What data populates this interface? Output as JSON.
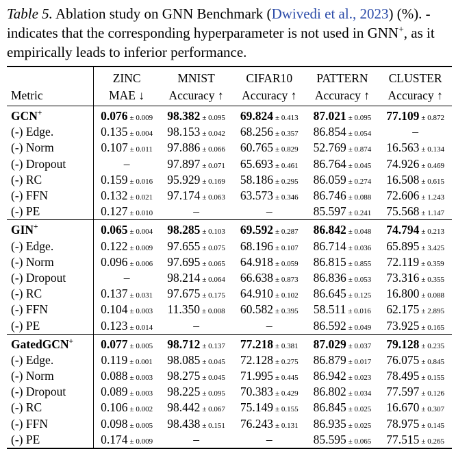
{
  "caption": {
    "label": "Table 5.",
    "text_before": "Ablation study on GNN Benchmark (",
    "link": "Dwivedi et al., 2023",
    "text_middle": ") (%). - indicates that the corresponding hyperparameter is not used in GNN",
    "sup": "+",
    "text_end": ", as it empirically leads to inferior performance."
  },
  "table": {
    "header": [
      [
        "",
        "Metric"
      ],
      [
        "ZINC",
        "MAE ↓"
      ],
      [
        "MNIST",
        "Accuracy ↑"
      ],
      [
        "CIFAR10",
        "Accuracy ↑"
      ],
      [
        "PATTERN",
        "Accuracy ↑"
      ],
      [
        "CLUSTER",
        "Accuracy ↑"
      ]
    ],
    "groups": [
      {
        "rows": [
          {
            "name": "GCN",
            "sup": "+",
            "cells": [
              [
                "0.076",
                "± 0.009"
              ],
              [
                "98.382",
                "± 0.095"
              ],
              [
                "69.824",
                "± 0.413"
              ],
              [
                "87.021",
                "± 0.095"
              ],
              [
                "77.109",
                "± 0.872"
              ]
            ]
          },
          {
            "name": "(-) Edge.",
            "cells": [
              [
                "0.135",
                "± 0.004"
              ],
              [
                "98.153",
                "± 0.042"
              ],
              [
                "68.256",
                "± 0.357"
              ],
              [
                "86.854",
                "± 0.054"
              ],
              [
                "–"
              ]
            ]
          },
          {
            "name": "(-) Norm",
            "cells": [
              [
                "0.107",
                "± 0.011"
              ],
              [
                "97.886",
                "± 0.066"
              ],
              [
                "60.765",
                "± 0.829"
              ],
              [
                "52.769",
                "± 0.874"
              ],
              [
                "16.563",
                "± 0.134"
              ]
            ]
          },
          {
            "name": "(-) Dropout",
            "cells": [
              [
                "–"
              ],
              [
                "97.897",
                "± 0.071"
              ],
              [
                "65.693",
                "± 0.461"
              ],
              [
                "86.764",
                "± 0.045"
              ],
              [
                "74.926",
                "± 0.469"
              ]
            ]
          },
          {
            "name": "(-) RC",
            "cells": [
              [
                "0.159",
                "± 0.016"
              ],
              [
                "95.929",
                "± 0.169"
              ],
              [
                "58.186",
                "± 0.295"
              ],
              [
                "86.059",
                "± 0.274"
              ],
              [
                "16.508",
                "± 0.615"
              ]
            ]
          },
          {
            "name": "(-) FFN",
            "cells": [
              [
                "0.132",
                "± 0.021"
              ],
              [
                "97.174",
                "± 0.063"
              ],
              [
                "63.573",
                "± 0.346"
              ],
              [
                "86.746",
                "± 0.088"
              ],
              [
                "72.606",
                "± 1.243"
              ]
            ]
          },
          {
            "name": "(-) PE",
            "cells": [
              [
                "0.127",
                "± 0.010"
              ],
              [
                "–"
              ],
              [
                "–"
              ],
              [
                "85.597",
                "± 0.241"
              ],
              [
                "75.568",
                "± 1.147"
              ]
            ]
          }
        ]
      },
      {
        "rows": [
          {
            "name": "GIN",
            "sup": "+",
            "cells": [
              [
                "0.065",
                "± 0.004"
              ],
              [
                "98.285",
                "± 0.103"
              ],
              [
                "69.592",
                "± 0.287"
              ],
              [
                "86.842",
                "± 0.048"
              ],
              [
                "74.794",
                "± 0.213"
              ]
            ]
          },
          {
            "name": "(-) Edge.",
            "cells": [
              [
                "0.122",
                "± 0.009"
              ],
              [
                "97.655",
                "± 0.075"
              ],
              [
                "68.196",
                "± 0.107"
              ],
              [
                "86.714",
                "± 0.036"
              ],
              [
                "65.895",
                "± 3.425"
              ]
            ]
          },
          {
            "name": "(-) Norm",
            "cells": [
              [
                "0.096",
                "± 0.006"
              ],
              [
                "97.695",
                "± 0.065"
              ],
              [
                "64.918",
                "± 0.059"
              ],
              [
                "86.815",
                "± 0.855"
              ],
              [
                "72.119",
                "± 0.359"
              ]
            ]
          },
          {
            "name": "(-) Dropout",
            "cells": [
              [
                "–"
              ],
              [
                "98.214",
                "± 0.064"
              ],
              [
                "66.638",
                "± 0.873"
              ],
              [
                "86.836",
                "± 0.053"
              ],
              [
                "73.316",
                "± 0.355"
              ]
            ]
          },
          {
            "name": "(-) RC",
            "cells": [
              [
                "0.137",
                "± 0.031"
              ],
              [
                "97.675",
                "± 0.175"
              ],
              [
                "64.910",
                "± 0.102"
              ],
              [
                "86.645",
                "± 0.125"
              ],
              [
                "16.800",
                "± 0.088"
              ]
            ]
          },
          {
            "name": "(-) FFN",
            "cells": [
              [
                "0.104",
                "± 0.003"
              ],
              [
                "11.350",
                "± 0.008"
              ],
              [
                "60.582",
                "± 0.395"
              ],
              [
                "58.511",
                "± 0.016"
              ],
              [
                "62.175",
                "± 2.895"
              ]
            ]
          },
          {
            "name": "(-) PE",
            "cells": [
              [
                "0.123",
                "± 0.014"
              ],
              [
                "–"
              ],
              [
                "–"
              ],
              [
                "86.592",
                "± 0.049"
              ],
              [
                "73.925",
                "± 0.165"
              ]
            ]
          }
        ]
      },
      {
        "rows": [
          {
            "name": "GatedGCN",
            "sup": "+",
            "cells": [
              [
                "0.077",
                "± 0.005"
              ],
              [
                "98.712",
                "± 0.137"
              ],
              [
                "77.218",
                "± 0.381"
              ],
              [
                "87.029",
                "± 0.037"
              ],
              [
                "79.128",
                "± 0.235"
              ]
            ]
          },
          {
            "name": "(-) Edge.",
            "cells": [
              [
                "0.119",
                "± 0.001"
              ],
              [
                "98.085",
                "± 0.045"
              ],
              [
                "72.128",
                "± 0.275"
              ],
              [
                "86.879",
                "± 0.017"
              ],
              [
                "76.075",
                "± 0.845"
              ]
            ]
          },
          {
            "name": "(-) Norm",
            "cells": [
              [
                "0.088",
                "± 0.003"
              ],
              [
                "98.275",
                "± 0.045"
              ],
              [
                "71.995",
                "± 0.445"
              ],
              [
                "86.942",
                "± 0.023"
              ],
              [
                "78.495",
                "± 0.155"
              ]
            ]
          },
          {
            "name": "(-) Dropout",
            "cells": [
              [
                "0.089",
                "± 0.003"
              ],
              [
                "98.225",
                "± 0.095"
              ],
              [
                "70.383",
                "± 0.429"
              ],
              [
                "86.802",
                "± 0.034"
              ],
              [
                "77.597",
                "± 0.126"
              ]
            ]
          },
          {
            "name": "(-) RC",
            "cells": [
              [
                "0.106",
                "± 0.002"
              ],
              [
                "98.442",
                "± 0.067"
              ],
              [
                "75.149",
                "± 0.155"
              ],
              [
                "86.845",
                "± 0.025"
              ],
              [
                "16.670",
                "± 0.307"
              ]
            ]
          },
          {
            "name": "(-) FFN",
            "cells": [
              [
                "0.098",
                "± 0.005"
              ],
              [
                "98.438",
                "± 0.151"
              ],
              [
                "76.243",
                "± 0.131"
              ],
              [
                "86.935",
                "± 0.025"
              ],
              [
                "78.975",
                "± 0.145"
              ]
            ]
          },
          {
            "name": "(-) PE",
            "cells": [
              [
                "0.174",
                "± 0.009"
              ],
              [
                "–"
              ],
              [
                "–"
              ],
              [
                "85.595",
                "± 0.065"
              ],
              [
                "77.515",
                "± 0.265"
              ]
            ]
          }
        ]
      }
    ]
  }
}
